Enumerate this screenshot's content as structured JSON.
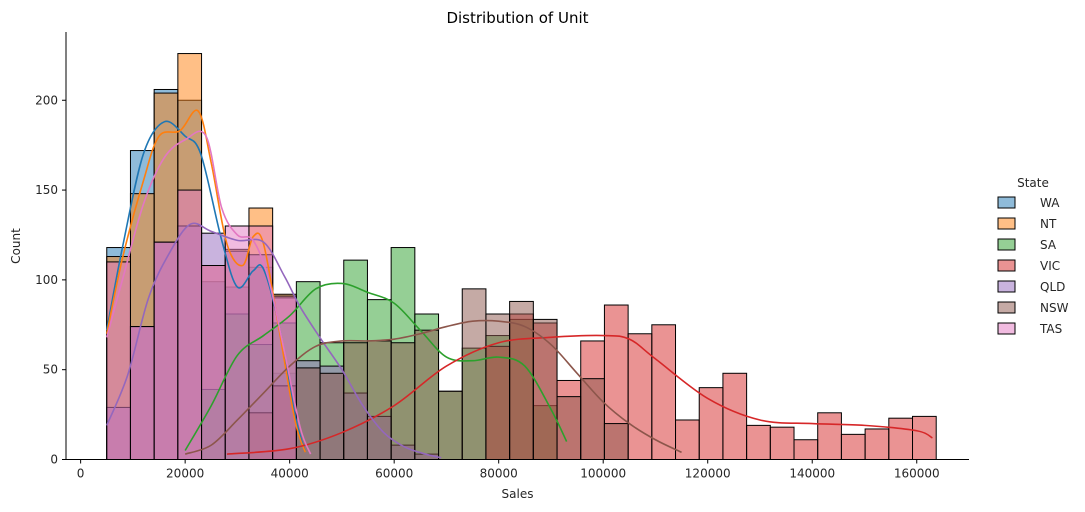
{
  "chart_data": {
    "type": "histogram",
    "title": "Distribution of Unit",
    "xlabel": "Sales",
    "ylabel": "Count",
    "xlim": [
      -2800,
      170000
    ],
    "ylim": [
      0,
      238
    ],
    "xticks": [
      0,
      20000,
      40000,
      60000,
      80000,
      100000,
      120000,
      140000,
      160000
    ],
    "xtick_labels": [
      "0",
      "20000",
      "40000",
      "60000",
      "80000",
      "100000",
      "120000",
      "140000",
      "160000"
    ],
    "yticks": [
      0,
      50,
      100,
      150,
      200
    ],
    "ytick_labels": [
      "0",
      "50",
      "100",
      "150",
      "200"
    ],
    "bin_edges": [
      5000,
      9535,
      14070,
      18605,
      23140,
      27675,
      32210,
      36745,
      41280,
      45815,
      50350,
      54885,
      59420,
      63955,
      68490,
      73025,
      77560,
      82095,
      86630,
      91165,
      95700,
      100235,
      104770,
      109305,
      113840,
      118375,
      122910,
      127445,
      131980,
      136515,
      141050,
      145585,
      150120,
      154655,
      159190,
      163725
    ],
    "legend": {
      "title": "State",
      "position": "right"
    },
    "series": [
      {
        "name": "WA",
        "color": "#1f77b4",
        "counts": [
          118,
          172,
          206,
          200,
          99,
          96,
          107,
          48,
          0,
          0,
          0,
          0,
          0,
          0,
          0,
          0,
          0,
          0,
          0,
          0,
          0,
          0,
          0,
          0,
          0,
          0,
          0,
          0,
          0,
          0,
          0,
          0,
          0,
          0,
          0
        ],
        "kde": [
          [
            5000,
            72
          ],
          [
            8000,
            118
          ],
          [
            12000,
            170
          ],
          [
            16000,
            188
          ],
          [
            20000,
            180
          ],
          [
            23000,
            170
          ],
          [
            27000,
            122
          ],
          [
            30000,
            96
          ],
          [
            33000,
            105
          ],
          [
            35000,
            106
          ],
          [
            38000,
            74
          ],
          [
            41000,
            25
          ],
          [
            43000,
            4
          ]
        ]
      },
      {
        "name": "NT",
        "color": "#ff7f0e",
        "counts": [
          113,
          148,
          204,
          226,
          108,
          117,
          140,
          92,
          0,
          0,
          0,
          0,
          0,
          0,
          0,
          0,
          0,
          0,
          0,
          0,
          0,
          0,
          0,
          0,
          0,
          0,
          0,
          0,
          0,
          0,
          0,
          0,
          0,
          0,
          0
        ],
        "kde": [
          [
            5000,
            70
          ],
          [
            8000,
            112
          ],
          [
            12000,
            155
          ],
          [
            15000,
            180
          ],
          [
            19000,
            183
          ],
          [
            22500,
            194
          ],
          [
            25000,
            165
          ],
          [
            28000,
            120
          ],
          [
            31000,
            108
          ],
          [
            33000,
            124
          ],
          [
            35000,
            120
          ],
          [
            38000,
            72
          ],
          [
            41000,
            22
          ],
          [
            43000,
            4
          ]
        ]
      },
      {
        "name": "SA",
        "color": "#2ca02c",
        "counts": [
          0,
          0,
          0,
          0,
          39,
          81,
          64,
          76,
          99,
          65,
          111,
          89,
          118,
          81,
          38,
          62,
          69,
          78,
          30,
          0,
          0,
          0,
          0,
          0,
          0,
          0,
          0,
          0,
          0,
          0,
          0,
          0,
          0,
          0,
          0
        ],
        "kde": [
          [
            20000,
            5
          ],
          [
            25000,
            30
          ],
          [
            30000,
            58
          ],
          [
            35000,
            69
          ],
          [
            40000,
            80
          ],
          [
            45000,
            95
          ],
          [
            50000,
            98
          ],
          [
            55000,
            93
          ],
          [
            60000,
            87
          ],
          [
            65000,
            72
          ],
          [
            70000,
            57
          ],
          [
            75000,
            55
          ],
          [
            80000,
            57
          ],
          [
            85000,
            52
          ],
          [
            90000,
            28
          ],
          [
            93000,
            10
          ]
        ]
      },
      {
        "name": "VIC",
        "color": "#d62728",
        "counts": [
          0,
          0,
          0,
          0,
          0,
          0,
          0,
          0,
          0,
          0,
          0,
          0,
          0,
          0,
          0,
          0,
          63,
          81,
          76,
          44,
          66,
          86,
          70,
          75,
          22,
          40,
          48,
          19,
          18,
          11,
          26,
          14,
          17,
          23,
          24
        ],
        "kde": [
          [
            28000,
            3
          ],
          [
            40000,
            6
          ],
          [
            50000,
            15
          ],
          [
            60000,
            30
          ],
          [
            70000,
            52
          ],
          [
            80000,
            65
          ],
          [
            90000,
            68
          ],
          [
            100000,
            69
          ],
          [
            105000,
            67
          ],
          [
            110000,
            56
          ],
          [
            120000,
            34
          ],
          [
            130000,
            22
          ],
          [
            140000,
            20
          ],
          [
            150000,
            19
          ],
          [
            160000,
            16
          ],
          [
            163000,
            12
          ]
        ]
      },
      {
        "name": "QLD",
        "color": "#9467bd",
        "counts": [
          29,
          74,
          121,
          130,
          126,
          116,
          114,
          90,
          55,
          52,
          37,
          24,
          8,
          3,
          0,
          0,
          0,
          0,
          0,
          0,
          0,
          0,
          0,
          0,
          0,
          0,
          0,
          0,
          0,
          0,
          0,
          0,
          0,
          0,
          0
        ],
        "kde": [
          [
            5000,
            19
          ],
          [
            9000,
            47
          ],
          [
            13000,
            90
          ],
          [
            17000,
            115
          ],
          [
            21000,
            131
          ],
          [
            25000,
            127
          ],
          [
            30000,
            122
          ],
          [
            35000,
            121
          ],
          [
            39000,
            102
          ],
          [
            42000,
            85
          ],
          [
            46000,
            67
          ],
          [
            50000,
            50
          ],
          [
            54000,
            30
          ],
          [
            58000,
            15
          ],
          [
            62000,
            7
          ],
          [
            66000,
            3
          ],
          [
            69000,
            1
          ]
        ]
      },
      {
        "name": "NSW",
        "color": "#8c564b",
        "counts": [
          0,
          0,
          0,
          0,
          0,
          0,
          26,
          41,
          51,
          48,
          65,
          66,
          65,
          72,
          38,
          95,
          81,
          88,
          78,
          35,
          45,
          20,
          0,
          0,
          0,
          0,
          0,
          0,
          0,
          0,
          0,
          0,
          0,
          0,
          0
        ],
        "kde": [
          [
            20000,
            3
          ],
          [
            25000,
            8
          ],
          [
            30000,
            22
          ],
          [
            35000,
            37
          ],
          [
            40000,
            52
          ],
          [
            45000,
            63
          ],
          [
            50000,
            66
          ],
          [
            55000,
            66
          ],
          [
            60000,
            67
          ],
          [
            65000,
            70
          ],
          [
            70000,
            74
          ],
          [
            75000,
            77
          ],
          [
            80000,
            77
          ],
          [
            85000,
            74
          ],
          [
            90000,
            64
          ],
          [
            95000,
            48
          ],
          [
            100000,
            32
          ],
          [
            105000,
            20
          ],
          [
            110000,
            11
          ],
          [
            115000,
            4
          ]
        ]
      },
      {
        "name": "TAS",
        "color": "#e377c2",
        "counts": [
          110,
          74,
          121,
          150,
          108,
          130,
          130,
          91,
          0,
          0,
          0,
          0,
          0,
          0,
          0,
          0,
          0,
          0,
          0,
          0,
          0,
          0,
          0,
          0,
          0,
          0,
          0,
          0,
          0,
          0,
          0,
          0,
          0,
          0,
          0
        ],
        "kde": [
          [
            5000,
            68
          ],
          [
            8000,
            100
          ],
          [
            12000,
            142
          ],
          [
            16000,
            168
          ],
          [
            20000,
            178
          ],
          [
            24000,
            180
          ],
          [
            27000,
            140
          ],
          [
            30000,
            125
          ],
          [
            33000,
            122
          ],
          [
            36000,
            100
          ],
          [
            39000,
            60
          ],
          [
            42000,
            18
          ],
          [
            44000,
            3
          ]
        ]
      }
    ]
  }
}
